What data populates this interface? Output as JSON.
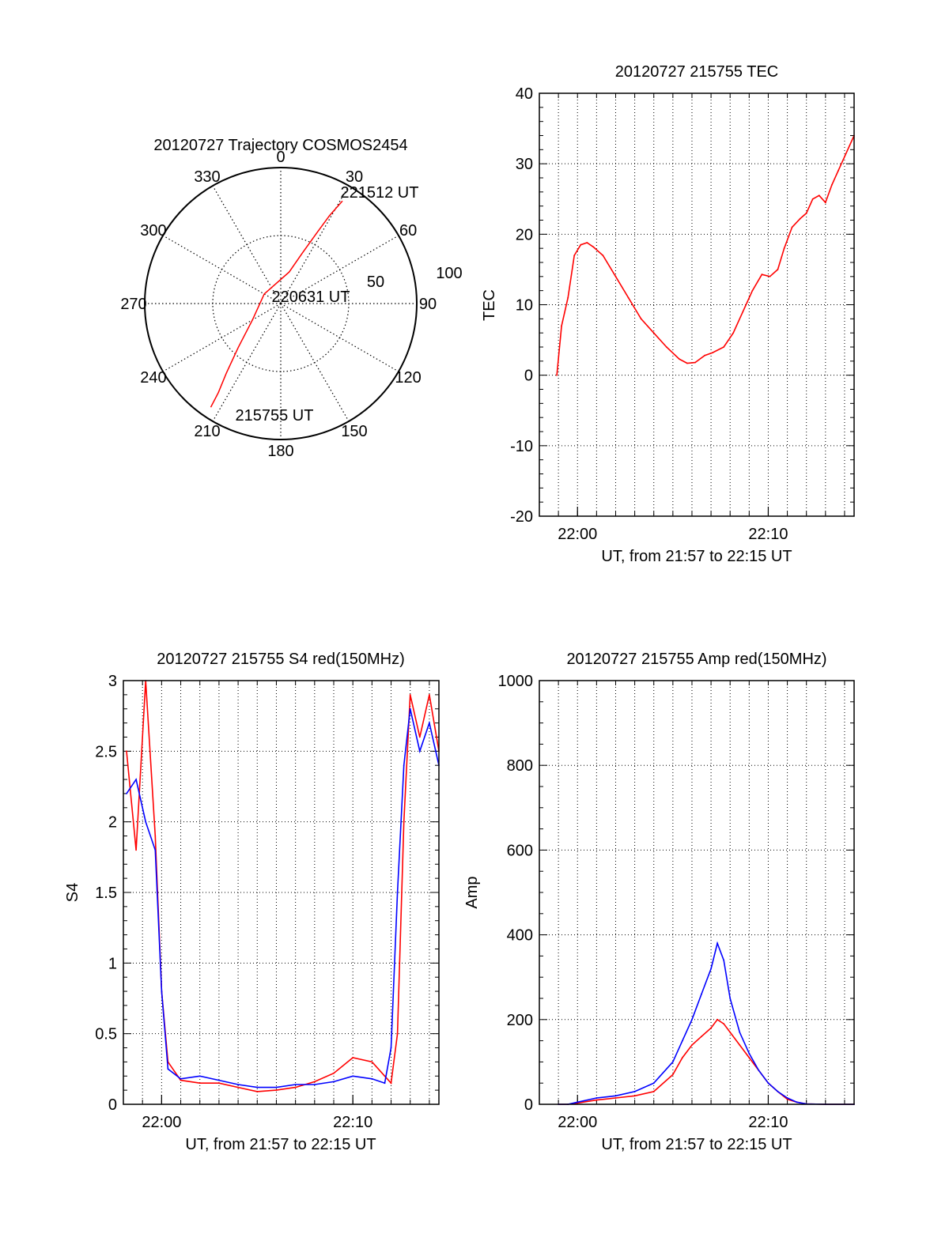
{
  "chart_data": [
    {
      "type": "polar",
      "title": "20120727 Trajectory COSMOS2454",
      "angle_ticks": [
        "0",
        "30",
        "60",
        "90",
        "120",
        "150",
        "180",
        "210",
        "240",
        "270",
        "300",
        "330"
      ],
      "radial_ticks": [
        "50",
        "100"
      ],
      "rlim": [
        0,
        100
      ],
      "labels": [
        "221512 UT",
        "220631 UT",
        "215755 UT"
      ],
      "series": [
        {
          "color": "#ff0000",
          "points": [
            {
              "az": 214,
              "el": 8
            },
            {
              "az": 215,
              "el": 20
            },
            {
              "az": 218,
              "el": 35
            },
            {
              "az": 224,
              "el": 55
            },
            {
              "az": 240,
              "el": 76
            },
            {
              "az": 300,
              "el": 86
            },
            {
              "az": 15,
              "el": 76
            },
            {
              "az": 23,
              "el": 60
            },
            {
              "az": 27,
              "el": 42
            },
            {
              "az": 29,
              "el": 26
            },
            {
              "az": 31,
              "el": 12
            }
          ]
        }
      ]
    },
    {
      "type": "line",
      "title": "20120727 215755 TEC",
      "xlabel": "UT, from 21:57 to 22:15 UT",
      "ylabel": "TEC",
      "xlim": [
        "21:58",
        "22:14:30"
      ],
      "ylim": [
        -20,
        40
      ],
      "xtick_labels": [
        "22:00",
        "22:10"
      ],
      "ytick_labels": [
        "-20",
        "-10",
        "0",
        "10",
        "20",
        "30",
        "40"
      ],
      "grid": true,
      "series": [
        {
          "color": "#ff0000",
          "x": [
            "21:58:55",
            "21:59:10",
            "21:59:30",
            "21:59:50",
            "22:00:10",
            "22:00:30",
            "22:00:50",
            "22:01:20",
            "22:02:00",
            "22:02:40",
            "22:03:20",
            "22:04:00",
            "22:04:40",
            "22:05:20",
            "22:05:45",
            "22:06:10",
            "22:06:40",
            "22:07:05",
            "22:07:40",
            "22:08:10",
            "22:08:40",
            "22:09:10",
            "22:09:40",
            "22:10:05",
            "22:10:30",
            "22:10:50",
            "22:11:15",
            "22:11:40",
            "22:12:00",
            "22:12:20",
            "22:12:40",
            "22:13:00",
            "22:13:20",
            "22:13:40",
            "22:14:00",
            "22:14:30"
          ],
          "y": [
            0,
            7,
            11,
            17,
            18.5,
            18.8,
            18.2,
            17,
            14,
            11,
            8,
            6,
            4,
            2.3,
            1.7,
            1.8,
            2.8,
            3.2,
            4,
            6,
            9,
            12,
            14.3,
            14,
            15,
            18,
            21,
            22.2,
            23,
            25,
            25.5,
            24.5,
            27,
            29,
            31,
            34
          ]
        }
      ]
    },
    {
      "type": "line",
      "title": "20120727 215755 S4 red(150MHz)",
      "xlabel": "UT, from 21:57 to 22:15 UT",
      "ylabel": "S4",
      "xlim": [
        "21:58",
        "22:14:30"
      ],
      "ylim": [
        0,
        3
      ],
      "xtick_labels": [
        "22:00",
        "22:10"
      ],
      "ytick_labels": [
        "0",
        "0.5",
        "1",
        "1.5",
        "2",
        "2.5",
        "3"
      ],
      "grid": true,
      "series": [
        {
          "color": "#ff0000",
          "x": [
            "21:58:10",
            "21:58:40",
            "21:59:10",
            "21:59:40",
            "22:00:00",
            "22:00:20",
            "22:01:00",
            "22:02:00",
            "22:03:00",
            "22:04:00",
            "22:05:00",
            "22:06:00",
            "22:07:00",
            "22:08:00",
            "22:09:00",
            "22:10:00",
            "22:11:00",
            "22:11:40",
            "22:12:00",
            "22:12:20",
            "22:12:40",
            "22:13:00",
            "22:13:30",
            "22:14:00",
            "22:14:30"
          ],
          "y": [
            2.5,
            1.8,
            3,
            1.9,
            0.8,
            0.3,
            0.17,
            0.15,
            0.15,
            0.12,
            0.09,
            0.1,
            0.12,
            0.16,
            0.22,
            0.33,
            0.3,
            0.2,
            0.15,
            0.5,
            2.0,
            2.9,
            2.6,
            2.9,
            2.5
          ]
        },
        {
          "color": "#0000ff",
          "x": [
            "21:58:10",
            "21:58:40",
            "21:59:10",
            "21:59:40",
            "22:00:00",
            "22:00:20",
            "22:01:00",
            "22:02:00",
            "22:03:00",
            "22:04:00",
            "22:05:00",
            "22:06:00",
            "22:07:00",
            "22:08:00",
            "22:09:00",
            "22:10:00",
            "22:11:00",
            "22:11:40",
            "22:12:00",
            "22:12:20",
            "22:12:40",
            "22:13:00",
            "22:13:30",
            "22:14:00",
            "22:14:30"
          ],
          "y": [
            2.2,
            2.3,
            2.0,
            1.8,
            0.8,
            0.25,
            0.18,
            0.2,
            0.17,
            0.14,
            0.12,
            0.12,
            0.14,
            0.14,
            0.16,
            0.2,
            0.18,
            0.15,
            0.4,
            1.5,
            2.4,
            2.8,
            2.5,
            2.7,
            2.4
          ]
        }
      ]
    },
    {
      "type": "line",
      "title": "20120727 215755 Amp red(150MHz)",
      "xlabel": "UT, from 21:57 to 22:15 UT",
      "ylabel": "Amp",
      "xlim": [
        "21:58",
        "22:14:30"
      ],
      "ylim": [
        0,
        1000
      ],
      "xtick_labels": [
        "22:00",
        "22:10"
      ],
      "ytick_labels": [
        "0",
        "200",
        "400",
        "600",
        "800",
        "1000"
      ],
      "grid": true,
      "series": [
        {
          "color": "#ff0000",
          "x": [
            "21:59:00",
            "21:59:30",
            "22:00:00",
            "22:01:00",
            "22:02:00",
            "22:03:00",
            "22:04:00",
            "22:05:00",
            "22:05:30",
            "22:06:00",
            "22:06:30",
            "22:07:00",
            "22:07:20",
            "22:07:40",
            "22:08:00",
            "22:08:30",
            "22:09:00",
            "22:09:30",
            "22:10:00",
            "22:10:30",
            "22:11:00",
            "22:11:30",
            "22:12:00",
            "22:13:00",
            "22:14:30"
          ],
          "y": [
            0,
            0,
            3,
            10,
            15,
            20,
            30,
            70,
            110,
            140,
            160,
            180,
            200,
            190,
            170,
            140,
            110,
            80,
            50,
            30,
            12,
            5,
            1,
            0,
            0
          ]
        },
        {
          "color": "#0000ff",
          "x": [
            "21:59:00",
            "21:59:30",
            "22:00:00",
            "22:01:00",
            "22:02:00",
            "22:03:00",
            "22:04:00",
            "22:05:00",
            "22:05:30",
            "22:06:00",
            "22:06:30",
            "22:07:00",
            "22:07:20",
            "22:07:40",
            "22:08:00",
            "22:08:30",
            "22:09:00",
            "22:09:30",
            "22:10:00",
            "22:10:30",
            "22:11:00",
            "22:11:30",
            "22:12:00",
            "22:13:00",
            "22:14:30"
          ],
          "y": [
            0,
            0,
            5,
            15,
            20,
            30,
            50,
            100,
            150,
            200,
            260,
            320,
            380,
            340,
            250,
            170,
            120,
            80,
            50,
            30,
            15,
            5,
            1,
            0,
            0
          ]
        }
      ]
    }
  ]
}
